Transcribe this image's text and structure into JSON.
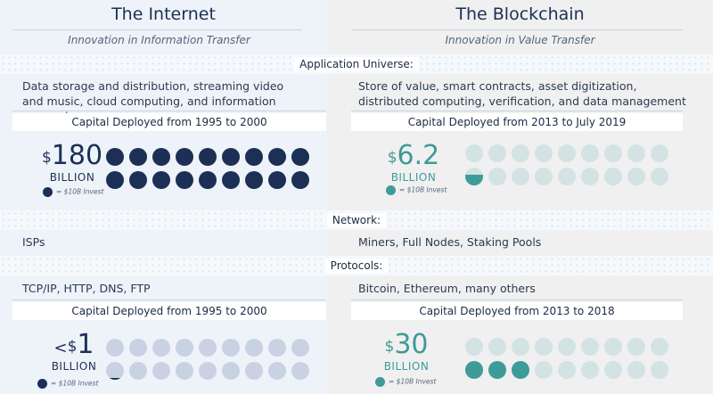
{
  "internet": {
    "title": "The Internet",
    "subtitle": "Innovation in Information Transfer",
    "application_text": "Data storage and distribution, streaming video and music, cloud computing, and information processing",
    "capital_app": {
      "heading": "Capital Deployed from 1995 to 2000",
      "prefix": "",
      "currency": "$",
      "number": "180",
      "unit": "BILLION",
      "legend": "= $10B Invest",
      "dots_total": 18,
      "dots_filled": 18
    },
    "network": "ISPs",
    "protocols": "TCP/IP, HTTP, DNS, FTP",
    "capital_protocol": {
      "heading": "Capital Deployed from 1995 to 2000",
      "prefix": "<",
      "currency": "$",
      "number": "1",
      "unit": "BILLION",
      "legend": "= $10B Invest",
      "dots_total": 18,
      "dots_filled": 0.1
    }
  },
  "blockchain": {
    "title": "The Blockchain",
    "subtitle": "Innovation in Value Transfer",
    "application_text": "Store of value, smart contracts, asset digitization, distributed computing, verification, and data management",
    "capital_app": {
      "heading": "Capital Deployed from 2013 to July 2019",
      "prefix": "",
      "currency": "$",
      "number": "6.2",
      "unit": "BILLION",
      "legend": "= $10B Invest",
      "dots_total": 18,
      "dots_filled": 0.62
    },
    "network": "Miners, Full Nodes, Staking Pools",
    "protocols": "Bitcoin, Ethereum, many others",
    "capital_protocol": {
      "heading": "Capital Deployed from 2013 to 2018",
      "prefix": "",
      "currency": "$",
      "number": "30",
      "unit": "BILLION",
      "legend": "= $10B Invest",
      "dots_total": 18,
      "dots_filled": 3
    }
  },
  "sections": {
    "application": "Application Universe:",
    "network": "Network:",
    "protocols": "Protocols:"
  },
  "colors": {
    "navy": "#1c2f55",
    "navy_empty": "#c9d2e2",
    "teal": "#3e9b98",
    "teal_empty": "#d3e2e3"
  }
}
